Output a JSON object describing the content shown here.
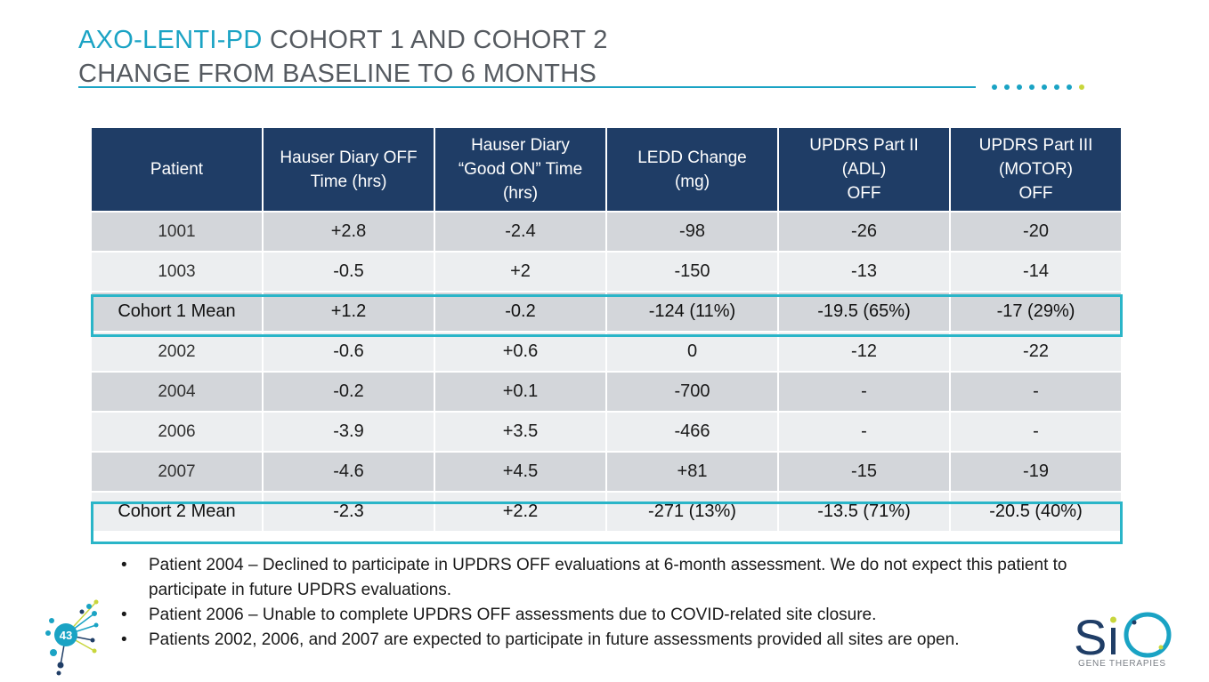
{
  "title": {
    "accent": "AXO-LENTI-PD",
    "line1_rest": " COHORT 1 AND COHORT 2",
    "line2": "CHANGE FROM BASELINE TO 6 MONTHS"
  },
  "table": {
    "headers": [
      "Patient",
      "Hauser Diary OFF Time (hrs)",
      "Hauser Diary “Good ON” Time (hrs)",
      "LEDD Change (mg)",
      "UPDRS Part II (ADL) OFF",
      "UPDRS Part III (MOTOR) OFF"
    ],
    "header_lines": [
      [
        "Patient"
      ],
      [
        "Hauser Diary OFF",
        "Time (hrs)"
      ],
      [
        "Hauser Diary",
        "“Good ON” Time",
        "(hrs)"
      ],
      [
        "LEDD Change",
        "(mg)"
      ],
      [
        "UPDRS Part II",
        "(ADL)",
        "OFF"
      ],
      [
        "UPDRS Part III",
        "(MOTOR)",
        "OFF"
      ]
    ],
    "rows": [
      [
        "1001",
        "+2.8",
        "-2.4",
        "-98",
        "-26",
        "-20"
      ],
      [
        "1003",
        "-0.5",
        "+2",
        "-150",
        "-13",
        "-14"
      ],
      [
        "Cohort 1 Mean",
        "+1.2",
        "-0.2",
        "-124 (11%)",
        "-19.5 (65%)",
        "-17 (29%)"
      ],
      [
        "2002",
        "-0.6",
        "+0.6",
        "0",
        "-12",
        "-22"
      ],
      [
        "2004",
        "-0.2",
        "+0.1",
        "-700",
        "-",
        "-"
      ],
      [
        "2006",
        "-3.9",
        "+3.5",
        "-466",
        "-",
        "-"
      ],
      [
        "2007",
        "-4.6",
        "+4.5",
        "+81",
        "-15",
        "-19"
      ],
      [
        "Cohort 2 Mean",
        "-2.3",
        "+2.2",
        "-271 (13%)",
        "-13.5 (71%)",
        "-20.5 (40%)"
      ]
    ]
  },
  "notes": [
    "Patient 2004 – Declined to participate in UPDRS OFF evaluations at 6-month assessment. We do not expect this patient to participate in future UPDRS evaluations.",
    "Patient 2006 – Unable to complete UPDRS OFF assessments due to COVID-related site closure.",
    "Patients 2002, 2006, and 2007 are expected to participate in future assessments provided all sites are open."
  ],
  "page_number": "43",
  "logo": {
    "mark": "SiO",
    "tagline": "GENE THERAPIES"
  },
  "colors": {
    "accent": "#1aa3c4",
    "header_bg": "#1f3d66",
    "highlight": "#2ab5c8",
    "dot_final": "#c8d63c"
  }
}
